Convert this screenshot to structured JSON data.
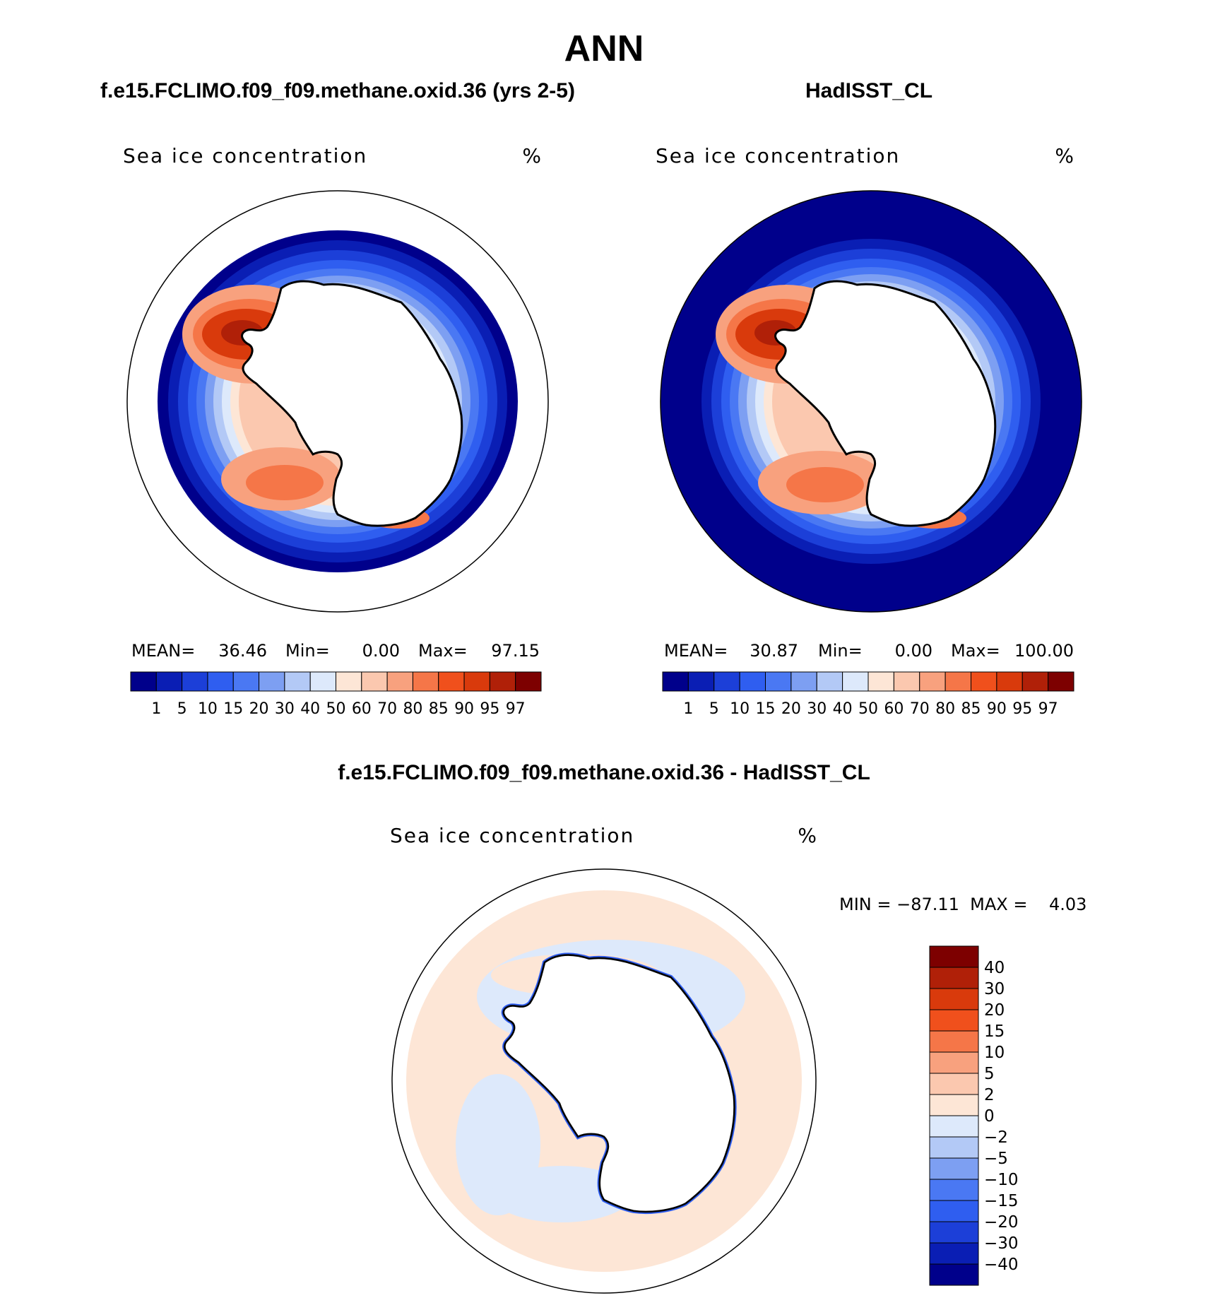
{
  "page_title": "ANN",
  "panels": [
    {
      "id": "model",
      "heading": "f.e15.FCLIMO.f09_f09.methane.oxid.36 (yrs 2-5)",
      "variable": "Sea ice concentration",
      "units": "%",
      "stats": {
        "mean_label": "MEAN=",
        "mean": "36.46",
        "min_label": "Min=",
        "min": "0.00",
        "max_label": "Max=",
        "max": "97.15"
      }
    },
    {
      "id": "obs",
      "heading": "HadISST_CL",
      "variable": "Sea ice concentration",
      "units": "%",
      "stats": {
        "mean_label": "MEAN=",
        "mean": "30.87",
        "min_label": "Min=",
        "min": "0.00",
        "max_label": "Max=",
        "max": "100.00"
      }
    },
    {
      "id": "diff",
      "heading": "f.e15.FCLIMO.f09_f09.methane.oxid.36 - HadISST_CL",
      "variable": "Sea ice concentration",
      "units": "%",
      "range_text": "MIN = −87.11  MAX =    4.03"
    }
  ],
  "main_colorbar": {
    "labels": [
      "1",
      "5",
      "10",
      "15",
      "20",
      "30",
      "40",
      "50",
      "60",
      "70",
      "80",
      "85",
      "90",
      "95",
      "97"
    ],
    "colors": [
      "#00008b",
      "#0a1eb4",
      "#1c3fd8",
      "#2f5ef0",
      "#4a78f3",
      "#7d9ff2",
      "#b3c9f6",
      "#dde9fb",
      "#fde6d6",
      "#fbc8af",
      "#f8a17e",
      "#f57648",
      "#f0501c",
      "#d93a0c",
      "#b02008",
      "#7d0000"
    ]
  },
  "diff_colorbar": {
    "labels": [
      "40",
      "30",
      "20",
      "15",
      "10",
      "5",
      "2",
      "0",
      "−2",
      "−5",
      "−10",
      "−15",
      "−20",
      "−30",
      "−40"
    ],
    "colors": [
      "#7d0000",
      "#b02008",
      "#d93a0c",
      "#f0501c",
      "#f57648",
      "#f8a17e",
      "#fbc8af",
      "#fde6d6",
      "#dde9fb",
      "#b3c9f6",
      "#7d9ff2",
      "#4a78f3",
      "#2f5ef0",
      "#1c3fd8",
      "#0a1eb4",
      "#00008b"
    ]
  }
}
